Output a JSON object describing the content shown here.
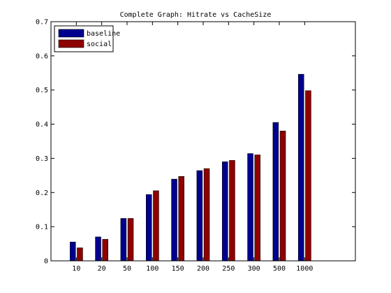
{
  "chart_data": {
    "type": "bar",
    "title": "Complete Graph: Hitrate vs CacheSize",
    "xlabel": "",
    "ylabel": "",
    "categories": [
      "10",
      "20",
      "50",
      "100",
      "150",
      "200",
      "250",
      "300",
      "500",
      "1000"
    ],
    "series": [
      {
        "name": "baseline",
        "color": "#00008f",
        "values": [
          0.055,
          0.07,
          0.124,
          0.194,
          0.239,
          0.264,
          0.29,
          0.314,
          0.405,
          0.546
        ]
      },
      {
        "name": "social",
        "color": "#8f0000",
        "values": [
          0.038,
          0.063,
          0.124,
          0.205,
          0.247,
          0.27,
          0.294,
          0.31,
          0.38,
          0.498
        ]
      }
    ],
    "ylim": [
      0,
      0.7
    ],
    "yticks": [
      "0",
      "0.1",
      "0.2",
      "0.3",
      "0.4",
      "0.5",
      "0.6",
      "0.7"
    ],
    "grid": false,
    "legend_position": "top-left"
  }
}
